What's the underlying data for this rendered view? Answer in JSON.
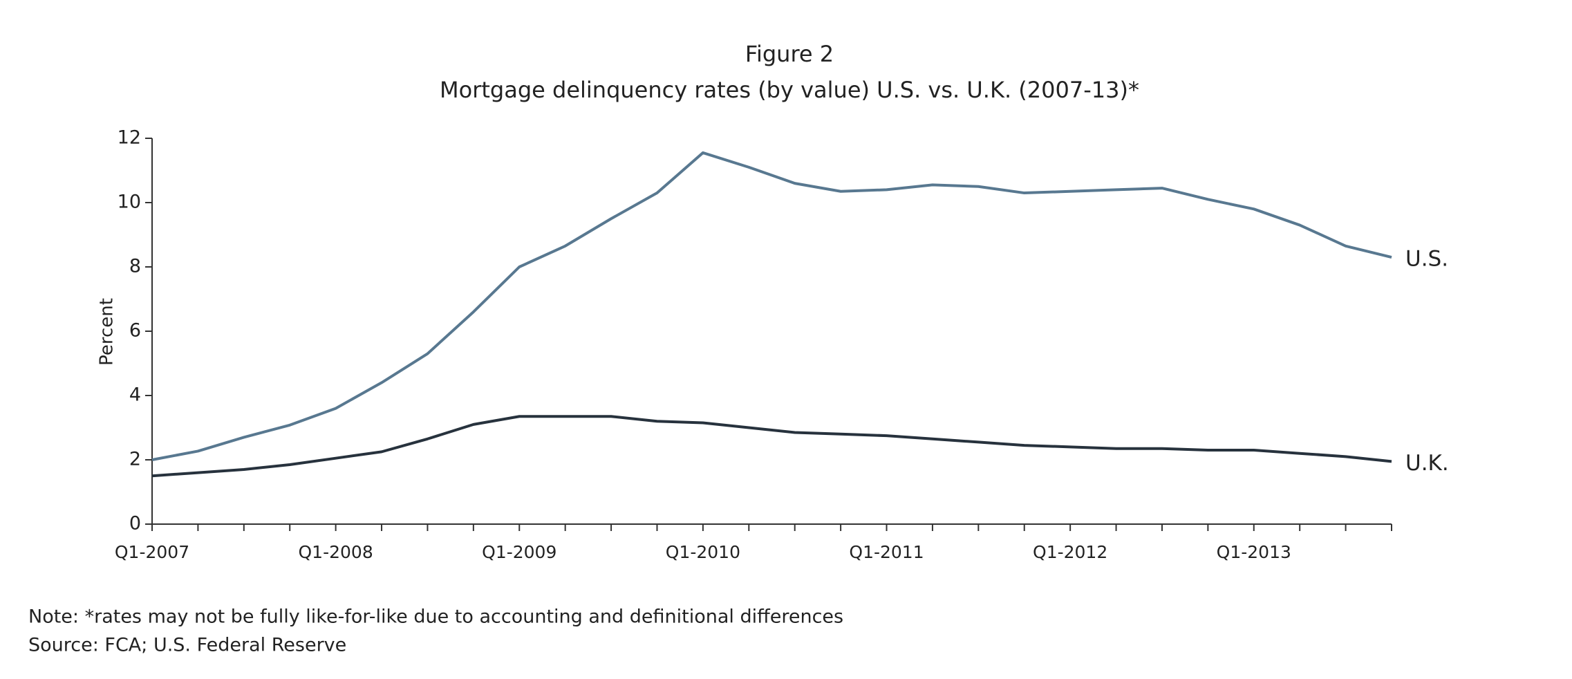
{
  "chart_data": {
    "type": "line",
    "title": "Figure 2",
    "subtitle": "Mortgage delinquency rates (by value) U.S. vs. U.K. (2007-13)*",
    "ylabel": "Percent",
    "categories": [
      "Q1-2007",
      null,
      null,
      null,
      "Q1-2008",
      null,
      null,
      null,
      "Q1-2009",
      null,
      null,
      null,
      "Q1-2010",
      null,
      null,
      null,
      "Q1-2011",
      null,
      null,
      null,
      "Q1-2012",
      null,
      null,
      null,
      "Q1-2013",
      null,
      null,
      null
    ],
    "series": [
      {
        "name": "U.S.",
        "color": "#587890",
        "values": [
          2.0,
          2.27,
          2.7,
          3.08,
          3.6,
          4.4,
          5.3,
          6.6,
          8.0,
          8.65,
          9.5,
          10.3,
          11.55,
          11.1,
          10.6,
          10.35,
          10.4,
          10.55,
          10.5,
          10.3,
          10.35,
          10.4,
          10.45,
          10.1,
          9.8,
          9.3,
          8.65,
          8.3
        ]
      },
      {
        "name": "U.K.",
        "color": "#27323d",
        "values": [
          1.5,
          1.6,
          1.7,
          1.85,
          2.05,
          2.25,
          2.65,
          3.1,
          3.35,
          3.35,
          3.35,
          3.2,
          3.15,
          3.0,
          2.85,
          2.8,
          2.75,
          2.65,
          2.55,
          2.45,
          2.4,
          2.35,
          2.35,
          2.3,
          2.3,
          2.2,
          2.1,
          1.95
        ]
      }
    ],
    "ylim": [
      0,
      12
    ],
    "yticks": [
      0,
      2,
      4,
      6,
      8,
      10,
      12
    ],
    "grid": false,
    "note": "Note: *rates may not be fully like-for-like due to accounting and definitional differences",
    "source": "Source: FCA; U.S. Federal Reserve"
  }
}
